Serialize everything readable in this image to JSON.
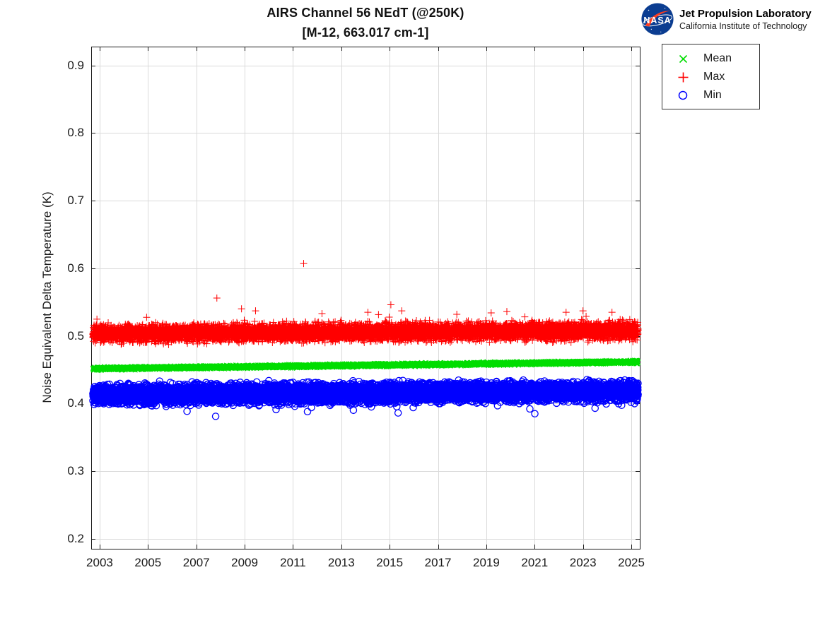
{
  "title": {
    "line1": "AIRS Channel 56 NEdT (@250K)",
    "line2": "[M-12, 663.017 cm-1]"
  },
  "branding": {
    "org_line1": "Jet Propulsion Laboratory",
    "org_line2": "California Institute of Technology",
    "nasa_text": "NASA",
    "nasa_blue": "#0B3D91",
    "nasa_red": "#FC3D21",
    "nasa_white": "#ffffff"
  },
  "chart_data": {
    "type": "scatter",
    "title": "AIRS Channel 56 NEdT (@250K)",
    "subtitle": "[M-12, 663.017 cm-1]",
    "xlabel": "",
    "ylabel": "Noise Equivalent Delta Temperature (K)",
    "xlim": [
      2002.65,
      2025.35
    ],
    "ylim": [
      0.185,
      0.928
    ],
    "xticks": [
      2003,
      2005,
      2007,
      2009,
      2011,
      2013,
      2015,
      2017,
      2019,
      2021,
      2023,
      2025
    ],
    "xtick_labels": [
      "2003",
      "2005",
      "2007",
      "2009",
      "2011",
      "2013",
      "2015",
      "2017",
      "2019",
      "2021",
      "2023",
      "2025"
    ],
    "yticks": [
      0.2,
      0.3,
      0.4,
      0.5,
      0.6,
      0.7,
      0.8,
      0.9
    ],
    "ytick_labels": [
      "0.2",
      "0.3",
      "0.4",
      "0.5",
      "0.6",
      "0.7",
      "0.8",
      "0.9"
    ],
    "grid": true,
    "axis_color": "#1a1a1a",
    "grid_color": "#dadada",
    "legend_position": "outside-top-right",
    "x_range_data": [
      2002.72,
      2025.28
    ],
    "points_per_series": 8200,
    "series": [
      {
        "name": "Max",
        "marker": "plus",
        "color": "#FF0000",
        "trend_start": 0.5035,
        "trend_end": 0.5075,
        "sigma": 0.006,
        "seed": 7,
        "spike_prob": 0.01,
        "spike_mag": 0.02,
        "spike_dir": 1,
        "outliers": [
          [
            2007.85,
            0.556
          ],
          [
            2008.87,
            0.54
          ],
          [
            2009.45,
            0.537
          ],
          [
            2011.44,
            0.607
          ],
          [
            2012.2,
            0.533
          ],
          [
            2014.1,
            0.535
          ],
          [
            2015.05,
            0.546
          ],
          [
            2015.5,
            0.537
          ],
          [
            2019.2,
            0.534
          ],
          [
            2019.85,
            0.536
          ],
          [
            2022.3,
            0.535
          ],
          [
            2023.0,
            0.537
          ],
          [
            2024.2,
            0.535
          ]
        ]
      },
      {
        "name": "Mean",
        "marker": "x",
        "color": "#00DD00",
        "trend_start": 0.4515,
        "trend_end": 0.4615,
        "sigma": 0.0011,
        "seed": 42,
        "spike_prob": 0,
        "spike_mag": 0,
        "spike_dir": 1,
        "outliers": []
      },
      {
        "name": "Min",
        "marker": "circle",
        "color": "#0000FF",
        "trend_start": 0.413,
        "trend_end": 0.4185,
        "sigma": 0.0066,
        "seed": 99,
        "spike_prob": 0.014,
        "spike_mag": 0.018,
        "spike_dir": -1,
        "outliers": [
          [
            2007.8,
            0.381
          ],
          [
            2010.3,
            0.391
          ],
          [
            2011.6,
            0.388
          ],
          [
            2013.5,
            0.39
          ],
          [
            2015.35,
            0.386
          ],
          [
            2020.8,
            0.392
          ],
          [
            2023.5,
            0.393
          ]
        ]
      }
    ],
    "legend_items": [
      {
        "label": "Mean",
        "marker": "x",
        "color": "#00DD00"
      },
      {
        "label": "Max",
        "marker": "plus",
        "color": "#FF0000"
      },
      {
        "label": "Min",
        "marker": "circle",
        "color": "#0000FF"
      }
    ]
  }
}
